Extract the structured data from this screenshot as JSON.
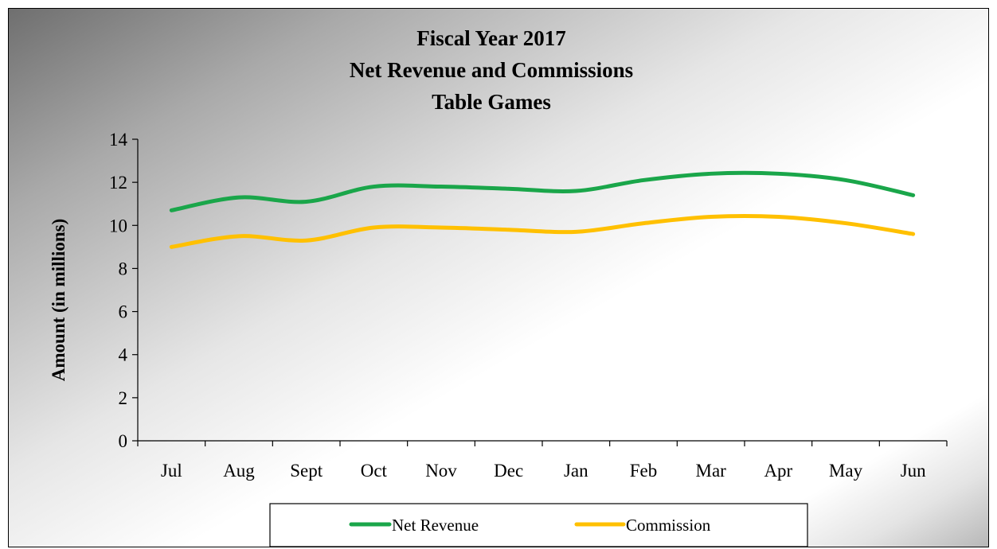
{
  "chart_data": {
    "type": "line",
    "title": [
      "Fiscal Year 2017",
      "Net Revenue and Commissions",
      "Table Games"
    ],
    "ylabel": "Amount (in millions)",
    "xlabel": "",
    "categories": [
      "Jul",
      "Aug",
      "Sept",
      "Oct",
      "Nov",
      "Dec",
      "Jan",
      "Feb",
      "Mar",
      "Apr",
      "May",
      "Jun"
    ],
    "ylim": [
      0,
      14
    ],
    "yticks": [
      0,
      2,
      4,
      6,
      8,
      10,
      12,
      14
    ],
    "ytick_labels": [
      "0",
      "2",
      "4",
      "6",
      "8",
      "10",
      "12",
      "14"
    ],
    "grid": false,
    "smooth": true,
    "legend_position": "bottom",
    "series": [
      {
        "name": "Net Revenue",
        "color": "#1aa64a",
        "values": [
          10.7,
          11.3,
          11.1,
          11.8,
          11.8,
          11.7,
          11.6,
          12.1,
          12.4,
          12.4,
          12.1,
          11.4
        ]
      },
      {
        "name": "Commission",
        "color": "#ffc000",
        "values": [
          9.0,
          9.5,
          9.3,
          9.9,
          9.9,
          9.8,
          9.7,
          10.1,
          10.4,
          10.4,
          10.1,
          9.6
        ]
      }
    ]
  }
}
